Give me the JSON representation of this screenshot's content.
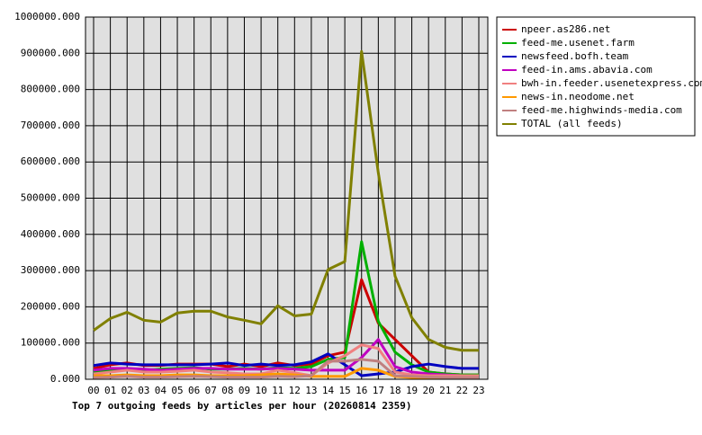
{
  "chart_data": {
    "type": "line",
    "title": "Top 7 outgoing feeds by articles per hour (20260814 2359)",
    "categories": [
      "00",
      "01",
      "02",
      "03",
      "04",
      "05",
      "06",
      "07",
      "08",
      "09",
      "10",
      "11",
      "12",
      "13",
      "14",
      "15",
      "16",
      "17",
      "18",
      "19",
      "20",
      "21",
      "22",
      "23"
    ],
    "ylim": [
      0,
      1000000
    ],
    "yticks": [
      {
        "value": 0,
        "label": "0.000"
      },
      {
        "value": 100000,
        "label": "100000.000"
      },
      {
        "value": 200000,
        "label": "200000.000"
      },
      {
        "value": 300000,
        "label": "300000.000"
      },
      {
        "value": 400000,
        "label": "400000.000"
      },
      {
        "value": 500000,
        "label": "500000.000"
      },
      {
        "value": 600000,
        "label": "600000.000"
      },
      {
        "value": 700000,
        "label": "700000.000"
      },
      {
        "value": 800000,
        "label": "800000.000"
      },
      {
        "value": 900000,
        "label": "900000.000"
      },
      {
        "value": 1000000,
        "label": "1000000.000"
      }
    ],
    "grid": true,
    "legend": "upper-right",
    "series": [
      {
        "name": "npeer.as286.net",
        "color": "#cc0000",
        "values": [
          30000,
          40000,
          45000,
          38000,
          38000,
          42000,
          42000,
          42000,
          35000,
          42000,
          35000,
          45000,
          38000,
          42000,
          65000,
          75000,
          275000,
          155000,
          110000,
          65000,
          20000,
          15000,
          12000,
          12000
        ]
      },
      {
        "name": "feed-me.usenet.farm",
        "color": "#00b000",
        "values": [
          20000,
          25000,
          30000,
          25000,
          28000,
          30000,
          32000,
          28000,
          28000,
          30000,
          28000,
          32000,
          30000,
          35000,
          55000,
          60000,
          380000,
          160000,
          75000,
          40000,
          20000,
          15000,
          12000,
          12000
        ]
      },
      {
        "name": "newsfeed.bofh.team",
        "color": "#0000c0",
        "values": [
          38000,
          45000,
          42000,
          40000,
          40000,
          40000,
          40000,
          42000,
          45000,
          38000,
          42000,
          38000,
          40000,
          48000,
          70000,
          40000,
          10000,
          15000,
          20000,
          35000,
          42000,
          35000,
          30000,
          30000
        ]
      },
      {
        "name": "feed-in.ams.abavia.com",
        "color": "#c000c0",
        "values": [
          25000,
          30000,
          30000,
          28000,
          25000,
          28000,
          30000,
          30000,
          28000,
          28000,
          28000,
          30000,
          28000,
          25000,
          25000,
          25000,
          60000,
          110000,
          35000,
          20000,
          15000,
          12000,
          10000,
          10000
        ]
      },
      {
        "name": "bwh-in.feeder.usenetexpress.com",
        "color": "#f08080",
        "values": [
          15000,
          20000,
          25000,
          20000,
          20000,
          22000,
          25000,
          20000,
          18000,
          15000,
          15000,
          25000,
          18000,
          10000,
          45000,
          65000,
          95000,
          85000,
          20000,
          12000,
          10000,
          10000,
          10000,
          10000
        ]
      },
      {
        "name": "news-in.neodome.net",
        "color": "#ff9900",
        "values": [
          10000,
          10000,
          12000,
          10000,
          10000,
          12000,
          12000,
          10000,
          10000,
          10000,
          12000,
          15000,
          12000,
          8000,
          8000,
          8000,
          30000,
          25000,
          8000,
          5000,
          5000,
          5000,
          5000,
          5000
        ]
      },
      {
        "name": "feed-me.highwinds-media.com",
        "color": "#c08080",
        "values": [
          5000,
          6000,
          8000,
          6000,
          6000,
          7000,
          8000,
          7000,
          6000,
          6000,
          6000,
          8000,
          7000,
          10000,
          50000,
          50000,
          55000,
          50000,
          10000,
          8000,
          6000,
          5000,
          5000,
          5000
        ]
      },
      {
        "name": "TOTAL (all feeds)",
        "color": "#808000",
        "values": [
          135000,
          168000,
          185000,
          163000,
          158000,
          183000,
          188000,
          188000,
          172000,
          163000,
          153000,
          203000,
          175000,
          180000,
          303000,
          325000,
          905000,
          570000,
          285000,
          170000,
          110000,
          88000,
          80000,
          80000
        ]
      }
    ]
  }
}
